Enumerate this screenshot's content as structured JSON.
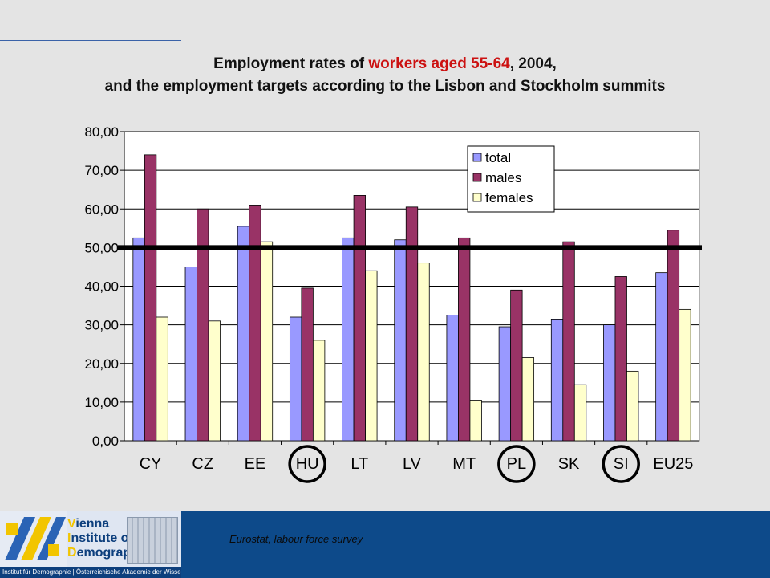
{
  "slide": {
    "title_line1_pre": "Employment rates of ",
    "title_line1_highlight": "workers aged 55-64",
    "title_line1_post": ", 2004,",
    "title_line2": "and the employment targets according to the Lisbon and Stockholm summits",
    "highlight_color": "#cc1111",
    "source": "Eurostat, labour force survey"
  },
  "logo": {
    "line1_initial": "V",
    "line1_rest": "ienna",
    "line2_initial": "I",
    "line2_rest": "nstitute of",
    "line3_initial": "D",
    "line3_rest": "emography",
    "strip": "Institut für Demographie | Österreichische Akademie der Wissenschaften"
  },
  "chart_data": {
    "type": "bar",
    "categories": [
      "CY",
      "CZ",
      "EE",
      "HU",
      "LT",
      "LV",
      "MT",
      "PL",
      "SK",
      "SI",
      "EU25"
    ],
    "circled_categories": [
      "HU",
      "PL",
      "SI"
    ],
    "series": [
      {
        "name": "total",
        "color": "#9999ff",
        "values": [
          52.5,
          45.0,
          55.5,
          32.0,
          52.5,
          52.0,
          32.5,
          29.5,
          31.5,
          30.0,
          43.5
        ]
      },
      {
        "name": "males",
        "color": "#993366",
        "values": [
          74.0,
          60.0,
          61.0,
          39.5,
          63.5,
          60.5,
          52.5,
          39.0,
          51.5,
          42.5,
          54.5
        ]
      },
      {
        "name": "females",
        "color": "#ffffcc",
        "values": [
          32.0,
          31.0,
          51.5,
          26.0,
          44.0,
          46.0,
          10.5,
          21.5,
          14.5,
          18.0,
          34.0
        ]
      }
    ],
    "target_line": 50,
    "ylim": [
      0,
      80
    ],
    "yticks": [
      "0,00",
      "10,00",
      "20,00",
      "30,00",
      "40,00",
      "50,00",
      "60,00",
      "70,00",
      "80,00"
    ],
    "grid": true,
    "legend_position": "top-right",
    "xlabel": "",
    "ylabel": ""
  }
}
